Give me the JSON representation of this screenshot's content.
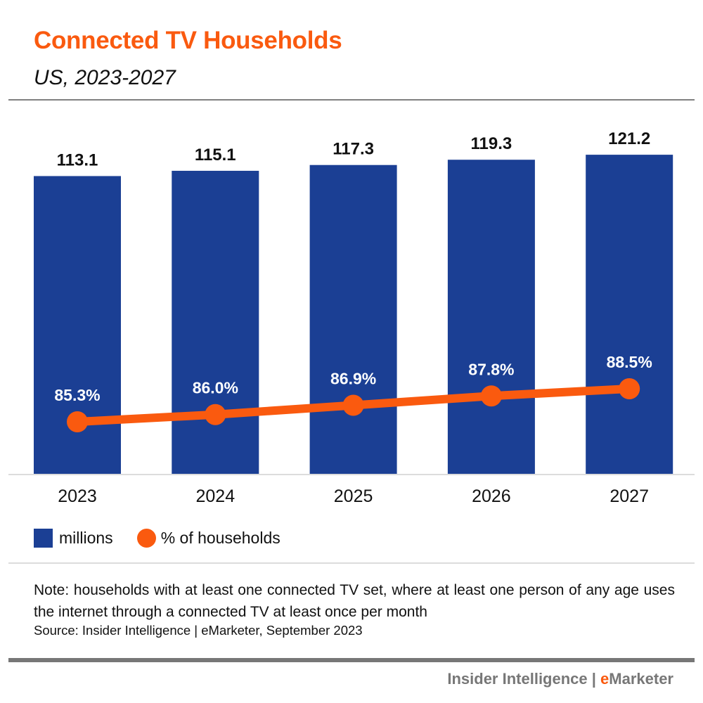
{
  "header": {
    "title": "Connected TV Households",
    "subtitle": "US, 2023-2027"
  },
  "colors": {
    "title": "#fa5a0f",
    "bar": "#1b3f94",
    "line": "#fa5a0f",
    "rule": "#808080"
  },
  "chart_data": {
    "type": "bar",
    "title": "Connected TV Households",
    "subtitle": "US, 2023-2027",
    "categories": [
      "2023",
      "2024",
      "2025",
      "2026",
      "2027"
    ],
    "series": [
      {
        "name": "millions",
        "type": "bar",
        "values": [
          113.1,
          115.1,
          117.3,
          119.3,
          121.2
        ],
        "labels": [
          "113.1",
          "115.1",
          "117.3",
          "119.3",
          "121.2"
        ]
      },
      {
        "name": "% of households",
        "type": "line",
        "values": [
          85.3,
          86.0,
          86.9,
          87.8,
          88.5
        ],
        "labels": [
          "85.3%",
          "86.0%",
          "86.9%",
          "87.8%",
          "88.5%"
        ]
      }
    ],
    "xlabel": "",
    "ylabel": "",
    "ylim": [
      0,
      121.2
    ],
    "grid": false,
    "legend": "bottom-left"
  },
  "legend": {
    "bar_label": "millions",
    "line_label": "% of households"
  },
  "footer": {
    "note": "Note: households with at least one connected TV set, where at least one person of any age uses the internet through a connected TV at least once per month",
    "source": "Source: Insider Intelligence | eMarketer, September 2023",
    "brand_prefix": "Insider Intelligence | ",
    "brand_e": "e",
    "brand_rest": "Marketer"
  }
}
